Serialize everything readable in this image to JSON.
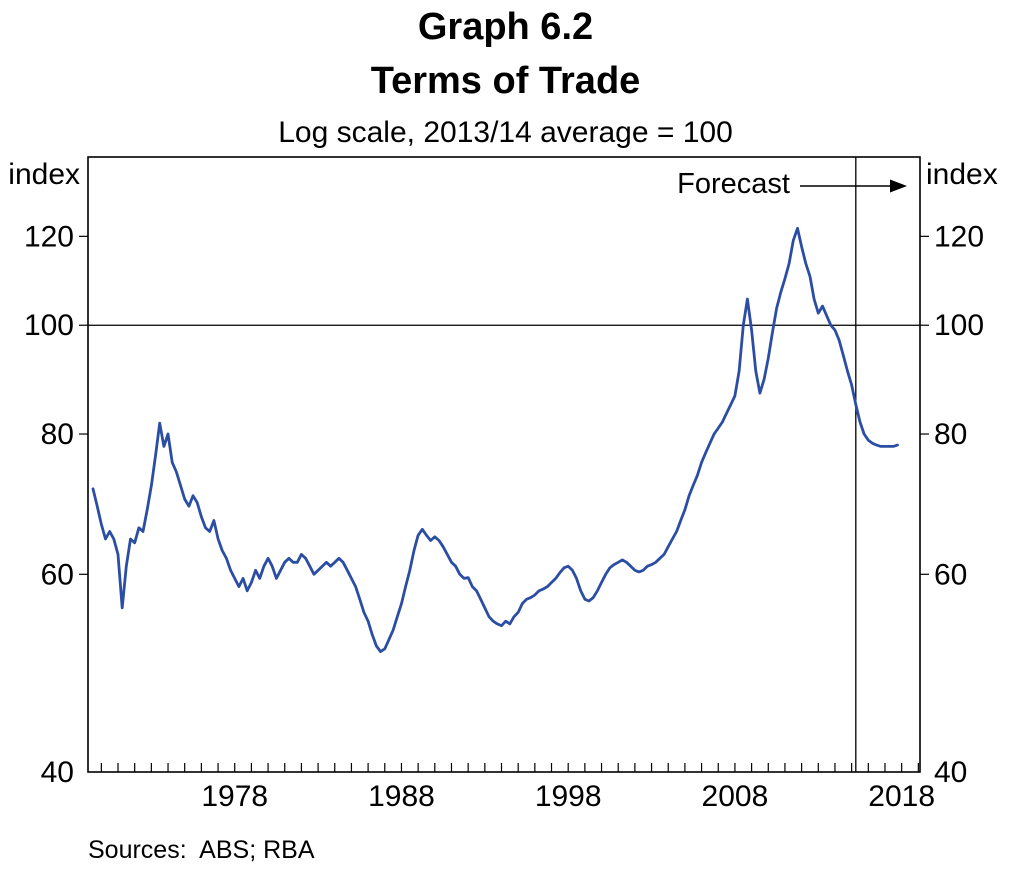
{
  "header": {
    "graph_number": "Graph 6.2",
    "title": "Terms of Trade",
    "subtitle": "Log scale, 2013/14 average = 100"
  },
  "footer": {
    "sources": "Sources:  ABS; RBA"
  },
  "chart_data": {
    "type": "line",
    "title": "Terms of Trade",
    "subtitle": "Log scale, 2013/14 average = 100",
    "scale": "log",
    "axis_color": "#000000",
    "x_axis": {
      "ticks": [
        1978,
        1988,
        1998,
        2008,
        2018
      ],
      "range": [
        1969.2,
        2019.1
      ],
      "minor_tick_interval": 1
    },
    "y_axis": {
      "ticks": [
        40,
        60,
        80,
        100,
        120
      ],
      "range": [
        40,
        141.2
      ],
      "unit_left": "index",
      "unit_right": "index"
    },
    "reference_line": 100,
    "forecast": {
      "label": "Forecast",
      "line_x": 2015.25
    },
    "series": [
      {
        "name": "Terms of trade",
        "color": "#2b4ea4",
        "points": [
          [
            1969.5,
            71.5
          ],
          [
            1969.75,
            69
          ],
          [
            1970,
            66.5
          ],
          [
            1970.25,
            64.5
          ],
          [
            1970.5,
            65.5
          ],
          [
            1970.75,
            64.5
          ],
          [
            1971,
            62.5
          ],
          [
            1971.25,
            56
          ],
          [
            1971.5,
            61
          ],
          [
            1971.75,
            64.5
          ],
          [
            1972,
            64
          ],
          [
            1972.25,
            66
          ],
          [
            1972.5,
            65.5
          ],
          [
            1972.75,
            68.5
          ],
          [
            1973,
            72
          ],
          [
            1973.25,
            76.5
          ],
          [
            1973.5,
            81.8
          ],
          [
            1973.75,
            78
          ],
          [
            1974,
            80
          ],
          [
            1974.25,
            75.5
          ],
          [
            1974.5,
            74
          ],
          [
            1974.75,
            72
          ],
          [
            1975,
            70
          ],
          [
            1975.25,
            69
          ],
          [
            1975.5,
            70.5
          ],
          [
            1975.75,
            69.5
          ],
          [
            1976,
            67.5
          ],
          [
            1976.25,
            66
          ],
          [
            1976.5,
            65.5
          ],
          [
            1976.75,
            67
          ],
          [
            1977,
            64.5
          ],
          [
            1977.25,
            63
          ],
          [
            1977.5,
            62
          ],
          [
            1977.75,
            60.5
          ],
          [
            1978,
            59.5
          ],
          [
            1978.25,
            58.5
          ],
          [
            1978.5,
            59.5
          ],
          [
            1978.75,
            58
          ],
          [
            1979,
            59
          ],
          [
            1979.25,
            60.5
          ],
          [
            1979.5,
            59.5
          ],
          [
            1979.75,
            61
          ],
          [
            1980,
            62
          ],
          [
            1980.25,
            61
          ],
          [
            1980.5,
            59.5
          ],
          [
            1980.75,
            60.5
          ],
          [
            1981,
            61.5
          ],
          [
            1981.25,
            62
          ],
          [
            1981.5,
            61.5
          ],
          [
            1981.75,
            61.5
          ],
          [
            1982,
            62.5
          ],
          [
            1982.25,
            62
          ],
          [
            1982.5,
            61
          ],
          [
            1982.75,
            60
          ],
          [
            1983,
            60.5
          ],
          [
            1983.25,
            61
          ],
          [
            1983.5,
            61.5
          ],
          [
            1983.75,
            61
          ],
          [
            1984,
            61.5
          ],
          [
            1984.25,
            62
          ],
          [
            1984.5,
            61.5
          ],
          [
            1984.75,
            60.5
          ],
          [
            1985,
            59.5
          ],
          [
            1985.25,
            58.5
          ],
          [
            1985.5,
            57
          ],
          [
            1985.75,
            55.5
          ],
          [
            1986,
            54.5
          ],
          [
            1986.25,
            53
          ],
          [
            1986.5,
            51.8
          ],
          [
            1986.75,
            51.2
          ],
          [
            1987,
            51.5
          ],
          [
            1987.25,
            52.5
          ],
          [
            1987.5,
            53.5
          ],
          [
            1987.75,
            55
          ],
          [
            1988,
            56.5
          ],
          [
            1988.25,
            58.5
          ],
          [
            1988.5,
            60.5
          ],
          [
            1988.75,
            63
          ],
          [
            1989,
            65
          ],
          [
            1989.25,
            65.8
          ],
          [
            1989.5,
            65
          ],
          [
            1989.75,
            64.3
          ],
          [
            1990,
            64.8
          ],
          [
            1990.25,
            64.3
          ],
          [
            1990.5,
            63.5
          ],
          [
            1990.75,
            62.5
          ],
          [
            1991,
            61.5
          ],
          [
            1991.25,
            61
          ],
          [
            1991.5,
            60
          ],
          [
            1991.75,
            59.5
          ],
          [
            1992,
            59.6
          ],
          [
            1992.25,
            58.5
          ],
          [
            1992.5,
            58
          ],
          [
            1992.75,
            57
          ],
          [
            1993,
            56
          ],
          [
            1993.25,
            55
          ],
          [
            1993.5,
            54.5
          ],
          [
            1993.75,
            54.2
          ],
          [
            1994,
            54
          ],
          [
            1994.25,
            54.5
          ],
          [
            1994.5,
            54.2
          ],
          [
            1994.75,
            55
          ],
          [
            1995,
            55.5
          ],
          [
            1995.25,
            56.5
          ],
          [
            1995.5,
            57
          ],
          [
            1995.75,
            57.2
          ],
          [
            1996,
            57.5
          ],
          [
            1996.25,
            58
          ],
          [
            1996.5,
            58.2
          ],
          [
            1996.75,
            58.5
          ],
          [
            1997,
            59
          ],
          [
            1997.25,
            59.5
          ],
          [
            1997.5,
            60.2
          ],
          [
            1997.75,
            60.8
          ],
          [
            1998,
            61
          ],
          [
            1998.25,
            60.5
          ],
          [
            1998.5,
            59.5
          ],
          [
            1998.75,
            58
          ],
          [
            1999,
            57
          ],
          [
            1999.25,
            56.8
          ],
          [
            1999.5,
            57.2
          ],
          [
            1999.75,
            58
          ],
          [
            2000,
            59
          ],
          [
            2000.25,
            60
          ],
          [
            2000.5,
            60.8
          ],
          [
            2000.75,
            61.2
          ],
          [
            2001,
            61.5
          ],
          [
            2001.25,
            61.8
          ],
          [
            2001.5,
            61.5
          ],
          [
            2001.75,
            61
          ],
          [
            2002,
            60.5
          ],
          [
            2002.25,
            60.3
          ],
          [
            2002.5,
            60.5
          ],
          [
            2002.75,
            61
          ],
          [
            2003,
            61.2
          ],
          [
            2003.25,
            61.5
          ],
          [
            2003.5,
            62
          ],
          [
            2003.75,
            62.5
          ],
          [
            2004,
            63.5
          ],
          [
            2004.25,
            64.5
          ],
          [
            2004.5,
            65.5
          ],
          [
            2004.75,
            67
          ],
          [
            2005,
            68.5
          ],
          [
            2005.25,
            70.5
          ],
          [
            2005.5,
            72
          ],
          [
            2005.75,
            73.5
          ],
          [
            2006,
            75.5
          ],
          [
            2006.25,
            77
          ],
          [
            2006.5,
            78.5
          ],
          [
            2006.75,
            80
          ],
          [
            2007,
            81
          ],
          [
            2007.25,
            82
          ],
          [
            2007.5,
            83.5
          ],
          [
            2007.75,
            85
          ],
          [
            2008,
            86.5
          ],
          [
            2008.25,
            91
          ],
          [
            2008.5,
            100
          ],
          [
            2008.75,
            105.5
          ],
          [
            2009,
            99
          ],
          [
            2009.25,
            91
          ],
          [
            2009.5,
            87
          ],
          [
            2009.75,
            89.5
          ],
          [
            2010,
            93.5
          ],
          [
            2010.25,
            98.5
          ],
          [
            2010.5,
            103.5
          ],
          [
            2010.75,
            107
          ],
          [
            2011,
            110
          ],
          [
            2011.25,
            113.5
          ],
          [
            2011.5,
            119
          ],
          [
            2011.75,
            122
          ],
          [
            2012,
            117.5
          ],
          [
            2012.25,
            113.5
          ],
          [
            2012.5,
            110.5
          ],
          [
            2012.75,
            105.5
          ],
          [
            2013,
            102.5
          ],
          [
            2013.25,
            104
          ],
          [
            2013.5,
            102
          ],
          [
            2013.75,
            100
          ],
          [
            2014,
            99
          ],
          [
            2014.25,
            97
          ],
          [
            2014.5,
            94
          ],
          [
            2014.75,
            91
          ],
          [
            2015,
            88.5
          ],
          [
            2015.25,
            85
          ],
          [
            2015.5,
            82
          ],
          [
            2015.75,
            80
          ],
          [
            2016,
            79
          ],
          [
            2016.25,
            78.5
          ],
          [
            2016.5,
            78.2
          ],
          [
            2016.75,
            78
          ],
          [
            2017,
            78
          ],
          [
            2017.25,
            78
          ],
          [
            2017.5,
            78
          ],
          [
            2017.75,
            78.2
          ]
        ]
      }
    ]
  }
}
